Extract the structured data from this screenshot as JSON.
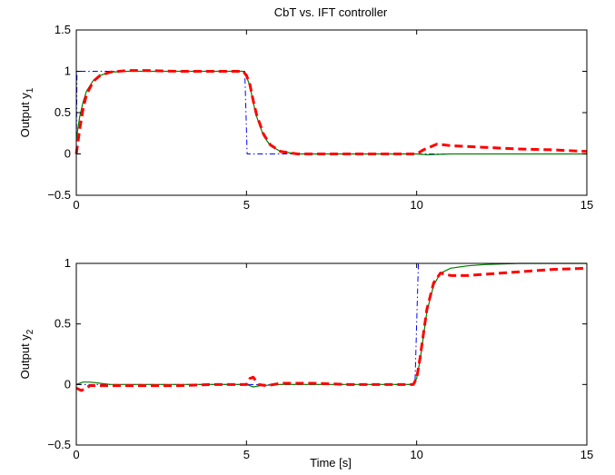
{
  "chart_data": [
    {
      "type": "line",
      "title": "CbT vs. IFT controller",
      "xlabel": "",
      "ylabel_main": "Output y",
      "ylabel_sub": "1",
      "xlim": [
        0,
        15
      ],
      "ylim": [
        -0.5,
        1.5
      ],
      "xticks": [
        0,
        5,
        10,
        15
      ],
      "xtick_labels": [
        "0",
        "5",
        "10",
        "15"
      ],
      "yticks": [
        -0.5,
        0,
        0.5,
        1,
        1.5
      ],
      "ytick_labels": [
        "−0.5",
        "0",
        "0.5",
        "1",
        "1.5"
      ],
      "grid": false,
      "series": [
        {
          "color": "#0000ff",
          "style": "dashdot",
          "width": 1,
          "x": [
            0,
            0.02,
            4.95,
            5.02,
            15
          ],
          "y": [
            0,
            1,
            1,
            0,
            0
          ]
        },
        {
          "color": "#008000",
          "style": "solid",
          "width": 1.2,
          "x": [
            0,
            0.1,
            0.2,
            0.3,
            0.5,
            0.7,
            1.0,
            1.5,
            2,
            3,
            4,
            4.9,
            5.0,
            5.1,
            5.2,
            5.3,
            5.5,
            5.7,
            6.0,
            6.5,
            7,
            8,
            9,
            10,
            10.3,
            11,
            12,
            13,
            14,
            15
          ],
          "y": [
            0.18,
            0.45,
            0.63,
            0.76,
            0.89,
            0.95,
            0.99,
            1.0,
            1.0,
            1.0,
            1.0,
            1.0,
            0.94,
            0.82,
            0.62,
            0.45,
            0.22,
            0.1,
            0.03,
            0.0,
            0.0,
            0.0,
            0.0,
            0.0,
            -0.01,
            0.0,
            0.0,
            0.0,
            0.0,
            0.0
          ]
        },
        {
          "color": "#ff0000",
          "style": "dashed",
          "width": 3,
          "x": [
            0,
            0.1,
            0.2,
            0.3,
            0.5,
            0.7,
            1.0,
            1.5,
            2,
            3,
            4,
            4.9,
            5.0,
            5.1,
            5.2,
            5.3,
            5.5,
            5.7,
            6.0,
            6.5,
            7,
            8,
            9,
            10,
            10.2,
            10.6,
            11,
            12,
            13,
            14,
            15
          ],
          "y": [
            0.0,
            0.3,
            0.55,
            0.72,
            0.88,
            0.95,
            0.99,
            1.01,
            1.01,
            1.0,
            1.0,
            1.0,
            0.95,
            0.84,
            0.64,
            0.47,
            0.24,
            0.11,
            0.03,
            0.0,
            0.0,
            0.0,
            0.0,
            0.0,
            0.05,
            0.12,
            0.1,
            0.08,
            0.06,
            0.05,
            0.03
          ]
        }
      ]
    },
    {
      "type": "line",
      "title": "",
      "xlabel": "Time [s]",
      "ylabel_main": "Output y",
      "ylabel_sub": "2",
      "xlim": [
        0,
        15
      ],
      "ylim": [
        -0.5,
        1
      ],
      "xticks": [
        0,
        5,
        10,
        15
      ],
      "xtick_labels": [
        "0",
        "5",
        "10",
        "15"
      ],
      "yticks": [
        -0.5,
        0,
        0.5,
        1
      ],
      "ytick_labels": [
        "−0.5",
        "0",
        "0.5",
        "1"
      ],
      "grid": false,
      "series": [
        {
          "color": "#0000ff",
          "style": "dashdot",
          "width": 1,
          "x": [
            0,
            9.95,
            10.05,
            15
          ],
          "y": [
            0,
            0,
            1,
            1
          ]
        },
        {
          "color": "#008000",
          "style": "solid",
          "width": 1.2,
          "x": [
            0,
            0.2,
            0.4,
            0.7,
            1.0,
            2,
            3,
            4,
            5,
            5.2,
            5.4,
            6,
            7,
            8,
            9,
            9.9,
            10,
            10.1,
            10.2,
            10.3,
            10.5,
            10.7,
            11,
            11.5,
            12,
            13,
            14,
            15
          ],
          "y": [
            0.0,
            0.02,
            0.02,
            0.01,
            0.0,
            0.0,
            0.0,
            0.0,
            0.0,
            -0.02,
            -0.01,
            0.0,
            0.0,
            0.0,
            0.0,
            0.0,
            0.05,
            0.2,
            0.4,
            0.6,
            0.82,
            0.92,
            0.96,
            0.98,
            0.99,
            1.0,
            1.0,
            1.0
          ]
        },
        {
          "color": "#ff0000",
          "style": "dashed",
          "width": 3,
          "x": [
            0,
            0.15,
            0.4,
            1,
            2,
            3,
            4,
            5,
            5.1,
            5.2,
            5.35,
            5.6,
            6,
            7,
            8,
            9,
            9.9,
            10,
            10.1,
            10.2,
            10.3,
            10.5,
            10.7,
            11,
            11.5,
            12,
            13,
            14,
            15
          ],
          "y": [
            -0.03,
            -0.05,
            -0.01,
            -0.01,
            -0.01,
            -0.01,
            0.0,
            0.0,
            0.05,
            0.06,
            0.0,
            -0.01,
            0.01,
            0.01,
            0.0,
            0.0,
            0.0,
            0.05,
            0.22,
            0.42,
            0.62,
            0.84,
            0.92,
            0.9,
            0.9,
            0.91,
            0.93,
            0.95,
            0.96
          ]
        }
      ]
    }
  ]
}
